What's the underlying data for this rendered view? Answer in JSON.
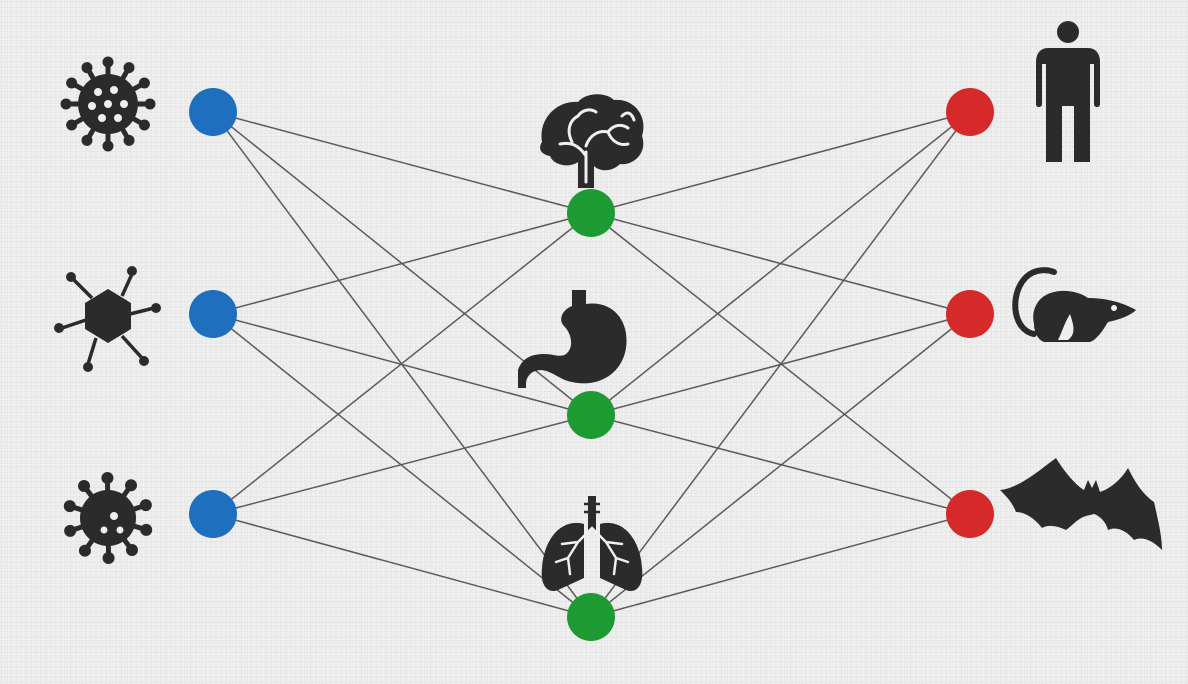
{
  "diagram": {
    "type": "tripartite-network",
    "colors": {
      "pathogen_node": "#1f6fbf",
      "organ_node": "#1e9a33",
      "host_node": "#d62a2a",
      "edge": "#5b5b5b",
      "icon": "#2b2b2b"
    },
    "columns": [
      {
        "id": "pathogens",
        "nodes": [
          {
            "id": "p1",
            "icon": "coronavirus-icon"
          },
          {
            "id": "p2",
            "icon": "bacteriophage-icon"
          },
          {
            "id": "p3",
            "icon": "virus-icon"
          }
        ]
      },
      {
        "id": "organs",
        "nodes": [
          {
            "id": "o1",
            "icon": "brain-icon"
          },
          {
            "id": "o2",
            "icon": "stomach-icon"
          },
          {
            "id": "o3",
            "icon": "lungs-icon"
          }
        ]
      },
      {
        "id": "hosts",
        "nodes": [
          {
            "id": "h1",
            "icon": "human-icon"
          },
          {
            "id": "h2",
            "icon": "rat-icon"
          },
          {
            "id": "h3",
            "icon": "bat-icon"
          }
        ]
      }
    ],
    "edges": [
      [
        "p1",
        "o1"
      ],
      [
        "p1",
        "o2"
      ],
      [
        "p1",
        "o3"
      ],
      [
        "p2",
        "o1"
      ],
      [
        "p2",
        "o2"
      ],
      [
        "p2",
        "o3"
      ],
      [
        "p3",
        "o1"
      ],
      [
        "p3",
        "o2"
      ],
      [
        "p3",
        "o3"
      ],
      [
        "o1",
        "h1"
      ],
      [
        "o1",
        "h2"
      ],
      [
        "o1",
        "h3"
      ],
      [
        "o2",
        "h1"
      ],
      [
        "o2",
        "h2"
      ],
      [
        "o2",
        "h3"
      ],
      [
        "o3",
        "h1"
      ],
      [
        "o3",
        "h2"
      ],
      [
        "o3",
        "h3"
      ]
    ]
  }
}
